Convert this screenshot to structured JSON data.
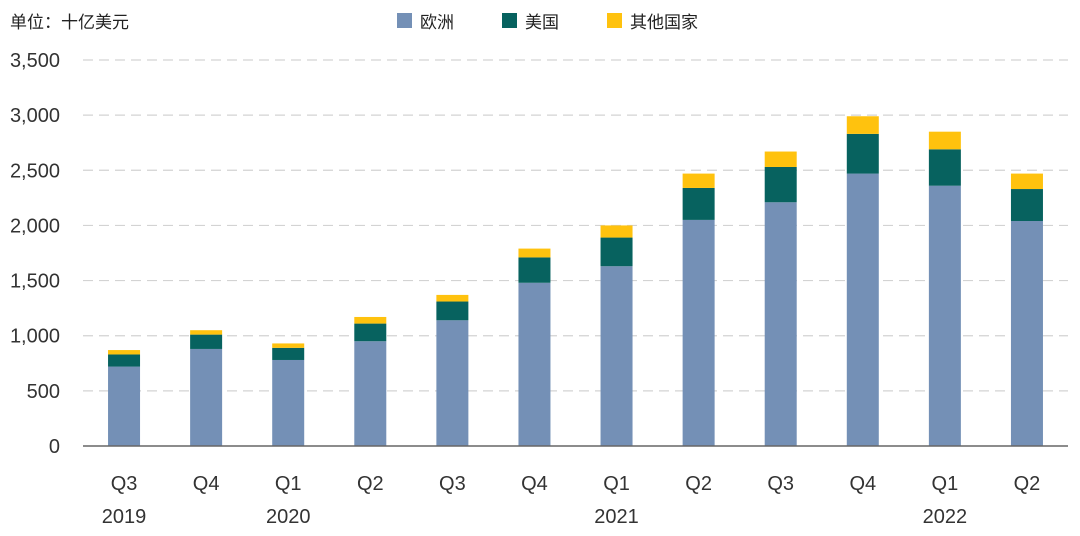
{
  "unit_label": "单位：十亿美元",
  "colors": {
    "europe": "#7490B6",
    "us": "#07625F",
    "other": "#FFC20E",
    "grid": "#D3D3D3",
    "axis": "#666666"
  },
  "chart_data": {
    "type": "bar",
    "stacked": true,
    "title": "",
    "xlabel": "",
    "ylabel": "",
    "ylim": [
      0,
      3500
    ],
    "yticks": [
      0,
      500,
      1000,
      1500,
      2000,
      2500,
      3000,
      3500
    ],
    "ytick_labels": [
      "0",
      "500",
      "1,000",
      "1,500",
      "2,000",
      "2,500",
      "3,000",
      "3,500"
    ],
    "categories": [
      {
        "quarter": "Q3",
        "year": "2019"
      },
      {
        "quarter": "Q4",
        "year": ""
      },
      {
        "quarter": "Q1",
        "year": "2020"
      },
      {
        "quarter": "Q2",
        "year": ""
      },
      {
        "quarter": "Q3",
        "year": ""
      },
      {
        "quarter": "Q4",
        "year": ""
      },
      {
        "quarter": "Q1",
        "year": "2021"
      },
      {
        "quarter": "Q2",
        "year": ""
      },
      {
        "quarter": "Q3",
        "year": ""
      },
      {
        "quarter": "Q4",
        "year": ""
      },
      {
        "quarter": "Q1",
        "year": "2022"
      },
      {
        "quarter": "Q2",
        "year": ""
      }
    ],
    "series": [
      {
        "name": "欧洲",
        "key": "europe",
        "values": [
          720,
          880,
          780,
          950,
          1140,
          1480,
          1630,
          2050,
          2210,
          2470,
          2360,
          2040
        ]
      },
      {
        "name": "美国",
        "key": "us",
        "values": [
          110,
          130,
          110,
          160,
          170,
          230,
          260,
          290,
          320,
          360,
          330,
          290
        ]
      },
      {
        "name": "其他国家",
        "key": "other",
        "values": [
          40,
          40,
          40,
          60,
          60,
          80,
          110,
          130,
          140,
          160,
          160,
          140
        ]
      }
    ],
    "grid": true,
    "legend_position": "top-center"
  }
}
